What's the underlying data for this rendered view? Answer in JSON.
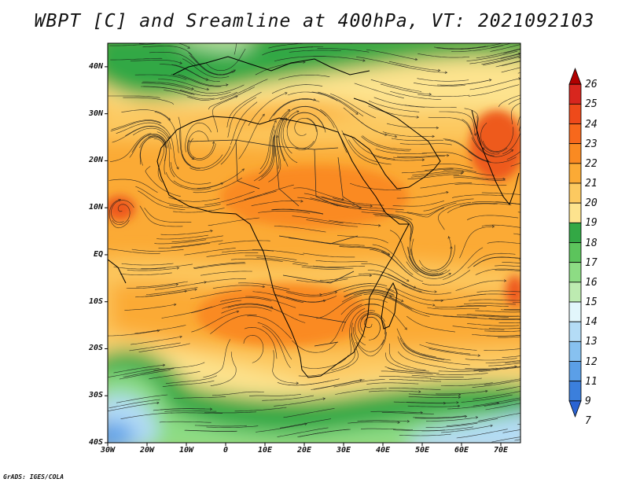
{
  "title": "WBPT [C] and Sreamline at 400hPa, VT: 2021092103",
  "credit": "GrADS: IGES/COLA",
  "map": {
    "projection": "lat-lon",
    "lon_range": [
      -30,
      75
    ],
    "lat_range": [
      -40,
      45
    ],
    "lat_ticks": [
      {
        "value": 40,
        "label": "40N"
      },
      {
        "value": 30,
        "label": "30N"
      },
      {
        "value": 20,
        "label": "20N"
      },
      {
        "value": 10,
        "label": "10N"
      },
      {
        "value": 0,
        "label": "EQ"
      },
      {
        "value": -10,
        "label": "10S"
      },
      {
        "value": -20,
        "label": "20S"
      },
      {
        "value": -30,
        "label": "30S"
      },
      {
        "value": -40,
        "label": "40S"
      }
    ],
    "lon_ticks": [
      {
        "value": -30,
        "label": "30W"
      },
      {
        "value": -20,
        "label": "20W"
      },
      {
        "value": -10,
        "label": "10W"
      },
      {
        "value": 0,
        "label": "0"
      },
      {
        "value": 10,
        "label": "10E"
      },
      {
        "value": 20,
        "label": "20E"
      },
      {
        "value": 30,
        "label": "30E"
      },
      {
        "value": 40,
        "label": "40E"
      },
      {
        "value": 50,
        "label": "50E"
      },
      {
        "value": 60,
        "label": "60E"
      },
      {
        "value": 70,
        "label": "70E"
      }
    ]
  },
  "colorbar": {
    "labels": [
      "26",
      "25",
      "24",
      "23",
      "22",
      "21",
      "20",
      "19",
      "18",
      "17",
      "16",
      "15",
      "14",
      "13",
      "12",
      "11",
      "9",
      "7"
    ],
    "colors": [
      "#b00000",
      "#d8261e",
      "#ee4a1a",
      "#f7681c",
      "#fa8a22",
      "#fbaa35",
      "#fcc960",
      "#fde38e",
      "#33a845",
      "#5cc45c",
      "#8ddc84",
      "#bdebb1",
      "#e2f6fb",
      "#b4dcf6",
      "#87c1f0",
      "#5b9fe7",
      "#3b7fdc",
      "#2a63d2"
    ]
  },
  "field_colors": {
    "hot_red": "#ee5a1c",
    "orange_dark": "#fa8a22",
    "orange": "#fbaa35",
    "light_orange": "#fcc960",
    "yellow": "#fde38e",
    "green": "#33a845",
    "mid_green": "#5cc45c",
    "light_green": "#8ddc84",
    "pale_green": "#bdebb1",
    "pale_blue": "#b4dcf6",
    "blue": "#5b9fe7"
  }
}
